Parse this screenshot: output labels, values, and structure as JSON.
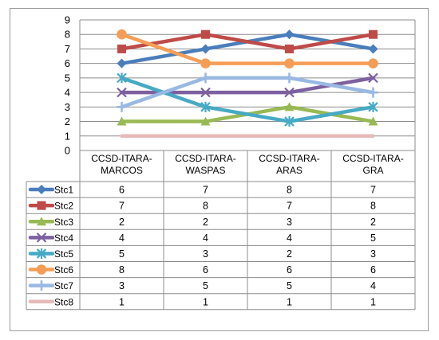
{
  "chart_data": {
    "type": "line",
    "categories": [
      [
        "CCSD-ITARA-",
        "MARCOS"
      ],
      [
        "CCSD-ITARA-",
        "WASPAS"
      ],
      [
        "CCSD-ITARA-",
        "ARAS"
      ],
      [
        "CCSD-ITARA-",
        "GRA"
      ]
    ],
    "ylim": [
      0,
      9
    ],
    "yticks": [
      "0",
      "1",
      "2",
      "3",
      "4",
      "5",
      "6",
      "7",
      "8",
      "9"
    ],
    "grid": true,
    "legend": "data-table",
    "series": [
      {
        "name": "Stc1",
        "color": "#4a7ebb",
        "marker": "diamond",
        "values": [
          6,
          7,
          8,
          7
        ]
      },
      {
        "name": "Stc2",
        "color": "#be4b48",
        "marker": "square",
        "values": [
          7,
          8,
          7,
          8
        ]
      },
      {
        "name": "Stc3",
        "color": "#98b954",
        "marker": "triangle",
        "values": [
          2,
          2,
          3,
          2
        ]
      },
      {
        "name": "Stc4",
        "color": "#7d60a0",
        "marker": "x",
        "values": [
          4,
          4,
          4,
          5
        ]
      },
      {
        "name": "Stc5",
        "color": "#46aac5",
        "marker": "star",
        "values": [
          5,
          3,
          2,
          3
        ]
      },
      {
        "name": "Stc6",
        "color": "#f59d56",
        "marker": "circle",
        "values": [
          8,
          6,
          6,
          6
        ]
      },
      {
        "name": "Stc7",
        "color": "#99b9e3",
        "marker": "plus",
        "values": [
          3,
          5,
          5,
          4
        ]
      },
      {
        "name": "Stc8",
        "color": "#e6b9b8",
        "marker": "none",
        "values": [
          1,
          1,
          1,
          1
        ]
      }
    ]
  }
}
